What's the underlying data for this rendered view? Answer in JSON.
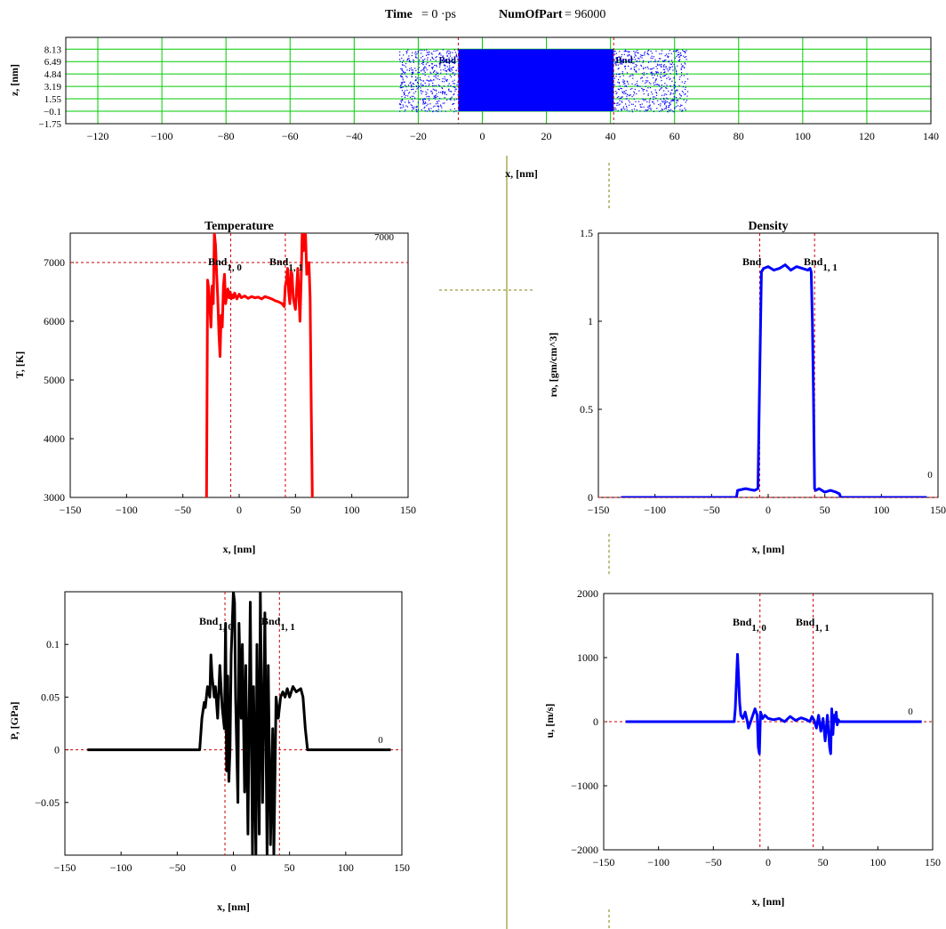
{
  "header": {
    "time_label": "Time",
    "time_expr": "= 0 ·ps",
    "numofpart_label": "NumOfPart",
    "numofpart_expr": "= 96000"
  },
  "chart_data": [
    {
      "id": "particles",
      "type": "scatter",
      "title": "",
      "xlabel": "x, [nm]",
      "ylabel": "z, [nm]",
      "xlim": [
        -130,
        140
      ],
      "ylim": [
        -1.75,
        9.7
      ],
      "xticks": [
        -120,
        -100,
        -80,
        -60,
        -40,
        -20,
        0,
        20,
        40,
        60,
        80,
        100,
        120,
        140
      ],
      "yticks": [
        -1.75,
        -0.1,
        1.55,
        3.19,
        4.84,
        6.49,
        8.13
      ],
      "grid": true,
      "dense_region_x": [
        -7.5,
        41
      ],
      "sparse_region_x": [
        -26,
        64
      ],
      "z_range": [
        -0.1,
        8.13
      ],
      "vlines": [
        -7.5,
        41
      ],
      "labels": [
        "Bnd",
        "Bnd"
      ]
    },
    {
      "id": "temperature",
      "type": "line",
      "title": "Temperature",
      "xlabel": "x, [nm]",
      "ylabel": "T, [K]",
      "xlim": [
        -150,
        150
      ],
      "ylim": [
        3000,
        7500
      ],
      "xticks": [
        -150,
        -100,
        -50,
        0,
        50,
        100,
        150
      ],
      "yticks": [
        3000,
        4000,
        5000,
        6000,
        7000
      ],
      "hline": 7000,
      "hline_label": "7000",
      "vlines": [
        -7.5,
        41
      ],
      "bnd_labels": [
        {
          "text": "Bnd",
          "sub": "1, 0"
        },
        {
          "text": "Bnd",
          "sub": "1, 1"
        }
      ],
      "series": [
        {
          "x": [
            -29,
            -28,
            -27,
            -26,
            -25,
            -24,
            -23,
            -22,
            -21,
            -20,
            -19,
            -18,
            -17,
            -16,
            -15,
            -14,
            -13,
            -12,
            -11,
            -10,
            -9,
            -8,
            -7,
            -6,
            -5,
            -4,
            -2,
            0,
            2,
            5,
            8,
            11,
            14,
            17,
            20,
            23,
            26,
            29,
            32,
            35,
            38,
            40,
            41,
            42,
            43,
            44,
            45,
            46,
            47,
            48,
            50,
            52,
            54,
            55,
            56,
            57,
            58,
            59,
            60,
            61,
            62,
            63,
            64,
            65
          ],
          "y": [
            3000,
            6700,
            6550,
            6200,
            5900,
            6600,
            6300,
            7500,
            7300,
            6800,
            6400,
            5800,
            5400,
            6100,
            5900,
            6600,
            6800,
            6300,
            6450,
            6550,
            6400,
            6500,
            6380,
            6450,
            6400,
            6480,
            6380,
            6460,
            6400,
            6430,
            6390,
            6420,
            6400,
            6410,
            6380,
            6420,
            6400,
            6380,
            6350,
            6330,
            6300,
            6250,
            6600,
            6700,
            6900,
            6500,
            6300,
            6850,
            6800,
            6400,
            6200,
            6900,
            6000,
            6700,
            7500,
            7200,
            7700,
            7450,
            6800,
            6900,
            7000,
            6400,
            4500,
            3000
          ],
          "color": "#ff0000"
        }
      ]
    },
    {
      "id": "density",
      "type": "line",
      "title": "Density",
      "xlabel": "x, [nm]",
      "ylabel": "ro, [gm/cm^3]",
      "xlim": [
        -150,
        150
      ],
      "ylim": [
        0,
        1.5
      ],
      "xticks": [
        -150,
        -100,
        -50,
        0,
        50,
        100,
        150
      ],
      "yticks": [
        0,
        0.5,
        1,
        1.5
      ],
      "hline": 0,
      "hline_label": "0",
      "vlines": [
        -7.5,
        41
      ],
      "bnd_labels": [
        {
          "text": "Bnd",
          "sub": ""
        },
        {
          "text": "Bnd",
          "sub": "1, 1"
        }
      ],
      "series": [
        {
          "x": [
            -130,
            -28,
            -27,
            -20,
            -12,
            -9,
            -7.5,
            -6,
            -4,
            0,
            5,
            10,
            15,
            20,
            25,
            30,
            35,
            37,
            38,
            39,
            40,
            41,
            42,
            45,
            50,
            55,
            60,
            63,
            64,
            140
          ],
          "y": [
            0,
            0,
            0.04,
            0.05,
            0.04,
            0.05,
            0.7,
            1.28,
            1.3,
            1.31,
            1.29,
            1.3,
            1.32,
            1.29,
            1.31,
            1.3,
            1.29,
            1.3,
            1.28,
            1.0,
            0.6,
            0.05,
            0.04,
            0.05,
            0.03,
            0.04,
            0.03,
            0.02,
            0,
            0
          ],
          "color": "#0000ff"
        }
      ]
    },
    {
      "id": "pressure",
      "type": "line",
      "title": "",
      "xlabel": "x, [nm]",
      "ylabel": "P, [GPa]",
      "xlim": [
        -150,
        150
      ],
      "ylim": [
        -0.1,
        0.15
      ],
      "xticks": [
        -150,
        -100,
        -50,
        0,
        50,
        100,
        150
      ],
      "yticks": [
        -0.05,
        0,
        0.05,
        0.1
      ],
      "hline": 0,
      "hline_label": "0",
      "vlines": [
        -7.5,
        41
      ],
      "bnd_labels": [
        {
          "text": "Bnd",
          "sub": "1, 0"
        },
        {
          "text": "Bnd",
          "sub": "1, 1"
        }
      ],
      "series": [
        {
          "x": [
            -130,
            -30,
            -28,
            -26,
            -25,
            -23,
            -21,
            -20,
            -19,
            -17,
            -16,
            -14,
            -12,
            -10,
            -8,
            -7,
            -6,
            -5,
            -4,
            -3,
            -2,
            0,
            1,
            2,
            4,
            5,
            7,
            8,
            10,
            11,
            13,
            15,
            17,
            18,
            20,
            21,
            23,
            24,
            26,
            28,
            30,
            31,
            33,
            35,
            36,
            38,
            40,
            42,
            44,
            46,
            48,
            50,
            53,
            56,
            60,
            62,
            64,
            66,
            140
          ],
          "y": [
            0,
            0,
            0.03,
            0.045,
            0.04,
            0.06,
            0.05,
            0.09,
            0.07,
            0.05,
            0.06,
            0.03,
            0.08,
            0.04,
            0.02,
            0.12,
            -0.02,
            0.07,
            -0.03,
            0.0,
            0.09,
            0.15,
            0.14,
            0.05,
            -0.05,
            0.12,
            0.03,
            0.1,
            -0.04,
            0.08,
            -0.08,
            0.14,
            -0.1,
            0.06,
            -0.1,
            0.1,
            -0.08,
            0.15,
            -0.05,
            0.13,
            -0.1,
            0.08,
            -0.09,
            0.02,
            -0.1,
            0.05,
            0.03,
            0.05,
            0.055,
            0.05,
            0.058,
            0.05,
            0.06,
            0.055,
            0.058,
            0.05,
            0.02,
            0,
            0
          ],
          "color": "#000000"
        }
      ]
    },
    {
      "id": "velocity",
      "type": "line",
      "title": "",
      "xlabel": "x, [nm]",
      "ylabel": "u, [m/s]",
      "xlim": [
        -150,
        150
      ],
      "ylim": [
        -2000,
        2000
      ],
      "xticks": [
        -150,
        -100,
        -50,
        0,
        50,
        100,
        150
      ],
      "yticks": [
        -2000,
        -1000,
        0,
        1000,
        2000
      ],
      "hline": 0,
      "hline_label": "0",
      "vlines": [
        -7.5,
        41
      ],
      "bnd_labels": [
        {
          "text": "Bnd",
          "sub": "1, 0"
        },
        {
          "text": "Bnd",
          "sub": "1, 1"
        }
      ],
      "series": [
        {
          "x": [
            -130,
            -31,
            -30,
            -29,
            -28,
            -27,
            -26,
            -25,
            -23,
            -21,
            -19,
            -18,
            -16,
            -14,
            -12,
            -10,
            -9,
            -8,
            -7,
            -5,
            -3,
            0,
            5,
            10,
            15,
            20,
            25,
            30,
            35,
            38,
            40,
            42,
            44,
            46,
            48,
            50,
            52,
            54,
            56,
            57,
            58,
            59,
            60,
            61,
            62,
            63,
            64,
            65,
            140
          ],
          "y": [
            0,
            0,
            200,
            600,
            1050,
            700,
            300,
            100,
            50,
            150,
            0,
            -100,
            0,
            100,
            200,
            100,
            -400,
            -500,
            150,
            50,
            100,
            50,
            30,
            50,
            0,
            80,
            20,
            60,
            30,
            0,
            80,
            20,
            -100,
            100,
            -150,
            50,
            -300,
            100,
            -400,
            -500,
            200,
            -200,
            100,
            0,
            150,
            -50,
            30,
            0,
            0
          ],
          "color": "#0000ff"
        }
      ]
    }
  ]
}
